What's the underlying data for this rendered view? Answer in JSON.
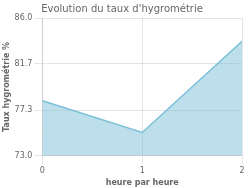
{
  "chart_data": {
    "type": "area",
    "title": "Evolution du taux d'hygrométrie",
    "xlabel": "heure par heure",
    "ylabel": "Taux hygrométrie %",
    "x": [
      0,
      1,
      2
    ],
    "values": [
      78.2,
      75.2,
      83.8
    ],
    "xlim": [
      0,
      2
    ],
    "ylim": [
      73.0,
      86.0
    ],
    "xticks": [
      0,
      1,
      2
    ],
    "yticks": [
      {
        "value": 73.0,
        "label": "73.0"
      },
      77.3,
      81.7,
      {
        "value": 86.0,
        "label": "86.0"
      }
    ],
    "color": "#7bbfd8",
    "grid": true
  }
}
